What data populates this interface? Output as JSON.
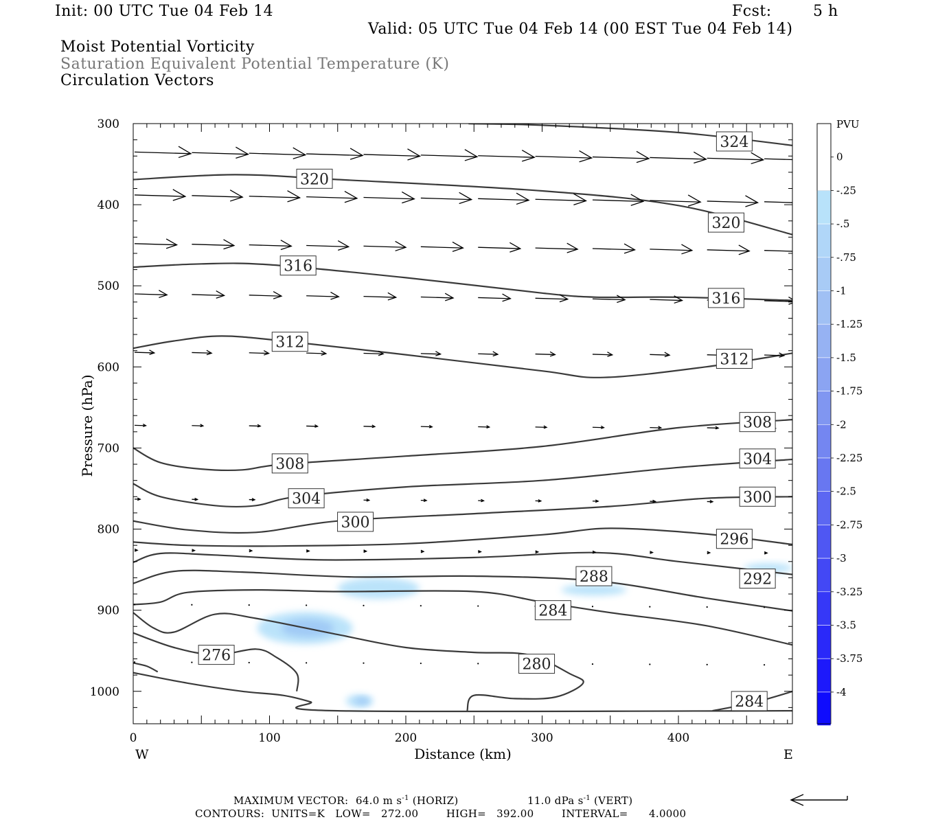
{
  "header": {
    "init": "Init: 00 UTC Tue 04 Feb 14",
    "fcst_label": "Fcst:",
    "fcst_value": "5 h",
    "valid": "Valid: 05 UTC Tue 04 Feb 14 (00 EST Tue 04 Feb 14)",
    "titles": [
      "Moist Potential Vorticity",
      "Saturation Equivalent Potential Temperature (K)",
      "Circulation Vectors"
    ]
  },
  "footer": {
    "max_vector_label": "MAXIMUM VECTOR:",
    "max_vector_horiz": "64.0 m s",
    "horiz_tag": "(HORIZ)",
    "max_vector_vert": "11.0 dPa s",
    "vert_tag": "(VERT)",
    "contours": "CONTOURS:  UNITS=K   LOW=   272.00        HIGH=   392.00        INTERVAL=      4.0000"
  },
  "colors": {
    "contour": "#3a3a3a",
    "vector": "#000000",
    "pv_fill_light": "#b8e2fa",
    "pv_fill_mid": "#9ec8f5"
  },
  "chart_data": {
    "type": "line",
    "xlabel": "Distance (km)",
    "ylabel": "Pressure (hPa)",
    "xlim": [
      0,
      484
    ],
    "ylim": [
      300,
      1040
    ],
    "y_log_scale": false,
    "y_inverted": true,
    "x_ticks": [
      0,
      100,
      200,
      300,
      400
    ],
    "y_ticks": [
      300,
      400,
      500,
      600,
      700,
      800,
      900,
      1000
    ],
    "x_end_labels": [
      "W",
      "E"
    ],
    "colorbar": {
      "title": "PVU",
      "labels": [
        "0",
        "-.25",
        "-.5",
        "-.75",
        "-1",
        "-1.25",
        "-1.5",
        "-1.75",
        "-2",
        "-2.25",
        "-2.5",
        "-2.75",
        "-3",
        "-3.25",
        "-3.5",
        "-3.75",
        "-4"
      ]
    },
    "contours": [
      {
        "value": 324,
        "label": "324",
        "points": [
          [
            246,
            300
          ],
          [
            300,
            302
          ],
          [
            400,
            311
          ],
          [
            484,
            327
          ]
        ],
        "labels_at": [
          [
            441,
            322
          ]
        ]
      },
      {
        "value": 320,
        "label": "320",
        "points": [
          [
            0,
            369
          ],
          [
            75,
            363
          ],
          [
            150,
            369
          ],
          [
            300,
            383
          ],
          [
            400,
            401
          ],
          [
            484,
            437
          ]
        ],
        "labels_at": [
          [
            133,
            368
          ],
          [
            435,
            422
          ]
        ]
      },
      {
        "value": 316,
        "label": "316",
        "points": [
          [
            0,
            477
          ],
          [
            50,
            473
          ],
          [
            100,
            474
          ],
          [
            200,
            490
          ],
          [
            300,
            509
          ],
          [
            340,
            514
          ],
          [
            400,
            514
          ],
          [
            484,
            518
          ]
        ],
        "labels_at": [
          [
            121,
            475
          ],
          [
            435,
            515
          ]
        ]
      },
      {
        "value": 312,
        "label": "312",
        "points": [
          [
            0,
            577
          ],
          [
            30,
            568
          ],
          [
            65,
            562
          ],
          [
            110,
            568
          ],
          [
            200,
            585
          ],
          [
            300,
            605
          ],
          [
            345,
            613
          ],
          [
            420,
            600
          ],
          [
            484,
            583
          ]
        ],
        "labels_at": [
          [
            115,
            569
          ],
          [
            441,
            590
          ]
        ]
      },
      {
        "value": 308,
        "label": "308",
        "points": [
          [
            0,
            700
          ],
          [
            20,
            718
          ],
          [
            50,
            726
          ],
          [
            80,
            727
          ],
          [
            110,
            720
          ],
          [
            200,
            710
          ],
          [
            300,
            698
          ],
          [
            400,
            675
          ],
          [
            484,
            665
          ]
        ],
        "labels_at": [
          [
            115,
            719
          ],
          [
            458,
            668
          ]
        ]
      },
      {
        "value": 304,
        "label": "304",
        "points": [
          [
            0,
            744
          ],
          [
            20,
            760
          ],
          [
            60,
            771
          ],
          [
            90,
            771
          ],
          [
            120,
            760
          ],
          [
            200,
            748
          ],
          [
            300,
            740
          ],
          [
            400,
            724
          ],
          [
            484,
            714
          ]
        ],
        "labels_at": [
          [
            127,
            762
          ],
          [
            458,
            713
          ]
        ]
      },
      {
        "value": 300,
        "label": "300",
        "points": [
          [
            0,
            790
          ],
          [
            40,
            801
          ],
          [
            90,
            804
          ],
          [
            150,
            790
          ],
          [
            250,
            781
          ],
          [
            350,
            772
          ],
          [
            420,
            762
          ],
          [
            484,
            760
          ]
        ],
        "labels_at": [
          [
            163,
            791
          ],
          [
            458,
            760
          ]
        ]
      },
      {
        "value": 296,
        "label": "296",
        "points": [
          [
            0,
            816
          ],
          [
            40,
            820
          ],
          [
            100,
            821
          ],
          [
            200,
            818
          ],
          [
            300,
            807
          ],
          [
            350,
            799
          ],
          [
            420,
            806
          ],
          [
            484,
            819
          ]
        ],
        "labels_at": [
          [
            441,
            812
          ]
        ]
      },
      {
        "value": 292,
        "label": "292",
        "points": [
          [
            0,
            841
          ],
          [
            20,
            830
          ],
          [
            60,
            832
          ],
          [
            140,
            838
          ],
          [
            250,
            835
          ],
          [
            340,
            829
          ],
          [
            400,
            840
          ],
          [
            484,
            856
          ]
        ],
        "labels_at": [
          [
            458,
            861
          ]
        ]
      },
      {
        "value": 288,
        "label": "288",
        "points": [
          [
            0,
            867
          ],
          [
            30,
            852
          ],
          [
            80,
            853
          ],
          [
            160,
            859
          ],
          [
            250,
            858
          ],
          [
            340,
            864
          ],
          [
            420,
            885
          ],
          [
            484,
            901
          ]
        ],
        "labels_at": [
          [
            338,
            858
          ]
        ]
      },
      {
        "value": 284,
        "label": "284",
        "points": [
          [
            0,
            893
          ],
          [
            20,
            890
          ],
          [
            40,
            878
          ],
          [
            90,
            875
          ],
          [
            150,
            877
          ],
          [
            250,
            877
          ],
          [
            300,
            890
          ],
          [
            350,
            903
          ],
          [
            420,
            919
          ],
          [
            484,
            943
          ]
        ],
        "labels_at": [
          [
            308,
            900
          ]
        ]
      },
      {
        "value": 280,
        "label": "280",
        "points": [
          [
            0,
            903
          ],
          [
            15,
            922
          ],
          [
            30,
            927
          ],
          [
            60,
            905
          ],
          [
            90,
            910
          ],
          [
            150,
            930
          ],
          [
            200,
            946
          ],
          [
            250,
            952
          ],
          [
            290,
            955
          ],
          [
            320,
            978
          ],
          [
            330,
            990
          ],
          [
            310,
            1007
          ],
          [
            280,
            1009
          ],
          [
            250,
            1005
          ],
          [
            245,
            1024
          ]
        ],
        "labels_at": [
          [
            296,
            966
          ]
        ]
      },
      {
        "value": 276,
        "label": "276",
        "points": [
          [
            0,
            928
          ],
          [
            30,
            946
          ],
          [
            60,
            955
          ],
          [
            90,
            948
          ],
          [
            105,
            958
          ],
          [
            120,
            978
          ],
          [
            120,
            1000
          ]
        ],
        "labels_at": [
          [
            61,
            955
          ]
        ]
      },
      {
        "value": 284,
        "label": "284",
        "points": [
          [
            0,
            977
          ],
          [
            40,
            990
          ],
          [
            80,
            1000
          ],
          [
            110,
            1005
          ],
          [
            130,
            1013
          ],
          [
            150,
            1024
          ],
          [
            484,
            1024
          ]
        ],
        "labels_at": [
          [
            452,
            1012
          ]
        ]
      },
      {
        "value": 276,
        "label": "",
        "points": [
          [
            0,
            965
          ],
          [
            10,
            969
          ],
          [
            18,
            976
          ]
        ],
        "labels_at": []
      },
      {
        "value": 284,
        "label": "",
        "points": [
          [
            425,
            1024
          ],
          [
            455,
            1014
          ],
          [
            484,
            1000
          ]
        ],
        "labels_at": []
      }
    ],
    "pv_regions": [
      {
        "pvu": -0.5,
        "center": [
          126,
          922
        ],
        "half_width_km": 35,
        "half_depth_hpa": 20
      },
      {
        "pvu": -0.25,
        "center": [
          180,
          873
        ],
        "half_width_km": 30,
        "half_depth_hpa": 13
      },
      {
        "pvu": -0.25,
        "center": [
          338,
          875
        ],
        "half_width_km": 24,
        "half_depth_hpa": 7
      },
      {
        "pvu": -0.25,
        "center": [
          466,
          848
        ],
        "half_width_km": 18,
        "half_depth_hpa": 6
      },
      {
        "pvu": -0.5,
        "center": [
          166,
          1012
        ],
        "half_width_km": 10,
        "half_depth_hpa": 8
      }
    ],
    "vector_rows": [
      {
        "p": 335,
        "u": 40
      },
      {
        "p": 388,
        "u": 36
      },
      {
        "p": 448,
        "u": 30
      },
      {
        "p": 510,
        "u": 23
      },
      {
        "p": 582,
        "u": 14
      },
      {
        "p": 672,
        "u": 8
      },
      {
        "p": 763,
        "u": 4
      },
      {
        "p": 826,
        "u": 2
      },
      {
        "p": 893,
        "u": 1
      },
      {
        "p": 964,
        "u": 0.5
      }
    ]
  }
}
